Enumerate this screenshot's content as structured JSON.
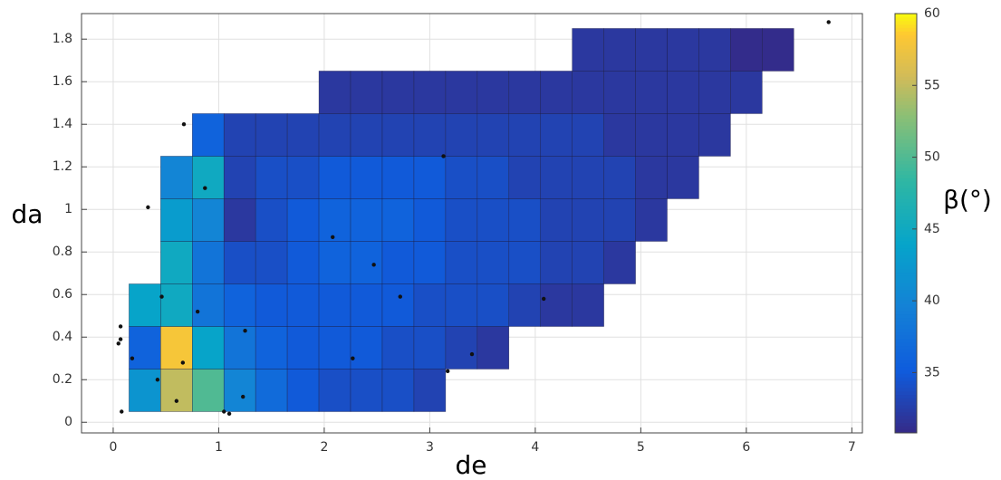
{
  "chart_data": {
    "type": "heatmap",
    "xlabel": "de",
    "ylabel": "da",
    "colorbar_label": "β(°)",
    "xlim": [
      -0.3,
      7.1
    ],
    "xticks": [
      0,
      1,
      2,
      3,
      4,
      5,
      6,
      7
    ],
    "ylim": [
      -0.05,
      1.92
    ],
    "yticks": [
      0,
      0.2,
      0.4,
      0.6,
      0.8,
      1,
      1.2,
      1.4,
      1.6,
      1.8
    ],
    "clim": [
      30.8,
      60
    ],
    "cticks": [
      35,
      40,
      45,
      50,
      55,
      60
    ],
    "grid": true,
    "x_edges": [
      0.15,
      0.45,
      0.75,
      1.05,
      1.35,
      1.65,
      1.95,
      2.25,
      2.55,
      2.85,
      3.15,
      3.45,
      3.75,
      4.05,
      4.35,
      4.65,
      4.95,
      5.25,
      5.55,
      5.85,
      6.15,
      6.45
    ],
    "y_edges": [
      0.05,
      0.25,
      0.45,
      0.65,
      0.85,
      1.05,
      1.25,
      1.45,
      1.65,
      1.85
    ],
    "z": [
      [
        42,
        55,
        50,
        40,
        37,
        35,
        34,
        34,
        34,
        33,
        null,
        null,
        null,
        null,
        null,
        null,
        null,
        null,
        null,
        null,
        null
      ],
      [
        36,
        58,
        44,
        38,
        36,
        35,
        35,
        35,
        34,
        34,
        33,
        32,
        null,
        null,
        null,
        null,
        null,
        null,
        null,
        null,
        null
      ],
      [
        44,
        45,
        38,
        36,
        35,
        35,
        35,
        35,
        35,
        34,
        34,
        34,
        33,
        32,
        32,
        null,
        null,
        null,
        null,
        null,
        null
      ],
      [
        null,
        45,
        38,
        34,
        34,
        35,
        36,
        36,
        35,
        35,
        34,
        34,
        34,
        33,
        33,
        32,
        null,
        null,
        null,
        null,
        null
      ],
      [
        null,
        43,
        40,
        32,
        34,
        35,
        36,
        36,
        36,
        35,
        34,
        34,
        34,
        33,
        33,
        33,
        32,
        null,
        null,
        null,
        null
      ],
      [
        null,
        40,
        45,
        33,
        34,
        34,
        35,
        35,
        35,
        35,
        34,
        34,
        33,
        33,
        33,
        33,
        32,
        32,
        null,
        null,
        null
      ],
      [
        null,
        null,
        36,
        33,
        33,
        33,
        33,
        33,
        33,
        33,
        33,
        33,
        33,
        33,
        33,
        32,
        32,
        32,
        32,
        null,
        null
      ],
      [
        null,
        null,
        null,
        null,
        null,
        null,
        32,
        32,
        32,
        32,
        32,
        32,
        32,
        32,
        32,
        32,
        32,
        32,
        32,
        32,
        null
      ],
      [
        null,
        null,
        null,
        null,
        null,
        null,
        null,
        null,
        null,
        null,
        null,
        null,
        null,
        null,
        32,
        32,
        32,
        32,
        32,
        31,
        31
      ]
    ],
    "points": {
      "color": "#111111",
      "x": [
        0.08,
        0.05,
        0.07,
        0.07,
        0.18,
        0.33,
        0.42,
        0.46,
        0.6,
        0.66,
        0.67,
        0.8,
        0.87,
        1.05,
        1.1,
        1.23,
        1.25,
        2.08,
        2.27,
        2.47,
        2.72,
        3.13,
        3.17,
        3.4,
        4.08,
        6.78
      ],
      "y": [
        0.05,
        0.37,
        0.39,
        0.45,
        0.3,
        1.01,
        0.2,
        0.59,
        0.1,
        0.28,
        1.4,
        0.52,
        1.1,
        0.05,
        0.04,
        0.12,
        0.43,
        0.87,
        0.3,
        0.74,
        0.59,
        1.25,
        0.24,
        0.32,
        0.58,
        1.88
      ]
    }
  }
}
